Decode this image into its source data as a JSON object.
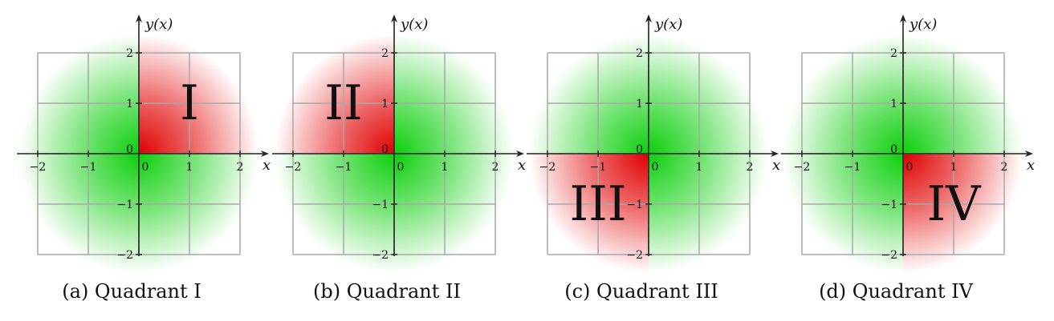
{
  "panels": [
    {
      "caption": "(a) Quadrant I",
      "quadrant_label": "I",
      "highlight": "top-right"
    },
    {
      "caption": "(b) Quadrant II",
      "quadrant_label": "II",
      "highlight": "top-left"
    },
    {
      "caption": "(c) Quadrant III",
      "quadrant_label": "III",
      "highlight": "bottom-left"
    },
    {
      "caption": "(d) Quadrant IV",
      "quadrant_label": "IV",
      "highlight": "bottom-right"
    }
  ],
  "axes": {
    "x_label": "x",
    "y_label": "y(x)",
    "x_ticks": [
      "−2",
      "−1",
      "0",
      "1",
      "2"
    ],
    "y_ticks": [
      "2",
      "1",
      "0",
      "−1",
      "−2"
    ]
  },
  "colors": {
    "highlight": "#e00000",
    "background": "#00cc00",
    "grid": "#a8a8a8",
    "axis": "#222222"
  }
}
